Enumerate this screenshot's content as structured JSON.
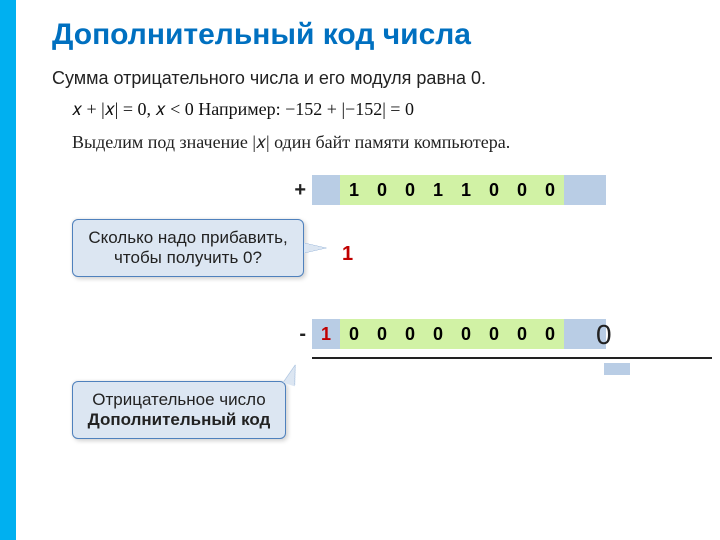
{
  "title": "Дополнительный код числа",
  "line1": "Сумма отрицательного числа и его модуля равна 0.",
  "formula": "𝑥 + |𝑥| = 0,   𝑥 < 0    Например: −152 + |−152| = 0",
  "line3_a": "Выделим под значение |𝑥|",
  "line3_b": "один байт памяти компьютера.",
  "top_row": {
    "sign": "+",
    "lead": "",
    "bits": [
      "1",
      "0",
      "0",
      "1",
      "1",
      "0",
      "0",
      "0"
    ],
    "trail": ""
  },
  "mid_one": "1",
  "bottom_row": {
    "sign": "-",
    "lead": "1",
    "bits": [
      "0",
      "0",
      "0",
      "0",
      "0",
      "0",
      "0",
      "0"
    ],
    "trail": ""
  },
  "big_zero": "0",
  "callout1_l1": "Сколько надо прибавить,",
  "callout1_l2": "чтобы получить 0?",
  "callout2_l1": "Отрицательное число",
  "callout2_l2": "Дополнительный код",
  "colors": {
    "accent_blue": "#00b0f0",
    "title_blue": "#0070c0",
    "cell_blue": "#b9cde5",
    "cell_green": "#d1f2a5",
    "callout_bg": "#dce6f2",
    "callout_border": "#4f81bd",
    "red": "#c00000"
  },
  "fontsize": {
    "title": 30,
    "body": 18,
    "cell": 18
  }
}
